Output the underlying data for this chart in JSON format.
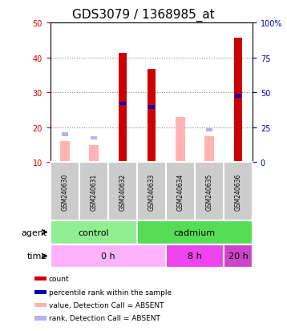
{
  "title": "GDS3079 / 1368985_at",
  "samples": [
    "GSM240630",
    "GSM240631",
    "GSM240632",
    "GSM240633",
    "GSM240634",
    "GSM240635",
    "GSM240636"
  ],
  "count_values": [
    0,
    0,
    41.2,
    36.7,
    0,
    0,
    45.7
  ],
  "rank_values": [
    0,
    0,
    26.8,
    25.8,
    0,
    0,
    29.0
  ],
  "absent_value_bars": [
    16.0,
    14.8,
    0,
    0,
    23.0,
    17.5,
    0
  ],
  "absent_rank_bars": [
    18.0,
    17.0,
    0,
    0,
    0,
    19.2,
    0
  ],
  "ylim_left": [
    10,
    50
  ],
  "ylim_right": [
    0,
    100
  ],
  "yticks_left": [
    10,
    20,
    30,
    40,
    50
  ],
  "yticks_right": [
    0,
    25,
    50,
    75,
    100
  ],
  "ytick_labels_right": [
    "0",
    "25",
    "50",
    "75",
    "100%"
  ],
  "agent_groups": [
    {
      "label": "control",
      "start": 0,
      "end": 3,
      "color": "#90EE90"
    },
    {
      "label": "cadmium",
      "start": 3,
      "end": 7,
      "color": "#55DD55"
    }
  ],
  "time_groups": [
    {
      "label": "0 h",
      "start": 0,
      "end": 4,
      "color": "#FFB3FF"
    },
    {
      "label": "8 h",
      "start": 4,
      "end": 6,
      "color": "#EE44EE"
    },
    {
      "label": "20 h",
      "start": 6,
      "end": 7,
      "color": "#CC44CC"
    }
  ],
  "count_color": "#CC0000",
  "rank_color": "#0000BB",
  "absent_value_color": "#FFB3B3",
  "absent_rank_color": "#B3B3EE",
  "grid_color": "#888888",
  "bg_color": "#FFFFFF",
  "left_axis_color": "#CC0000",
  "right_axis_color": "#0000BB",
  "tick_fontsize": 7,
  "title_fontsize": 11,
  "legend_items": [
    {
      "color": "#CC0000",
      "label": "count"
    },
    {
      "color": "#0000BB",
      "label": "percentile rank within the sample"
    },
    {
      "color": "#FFB3B3",
      "label": "value, Detection Call = ABSENT"
    },
    {
      "color": "#B3B3EE",
      "label": "rank, Detection Call = ABSENT"
    }
  ]
}
